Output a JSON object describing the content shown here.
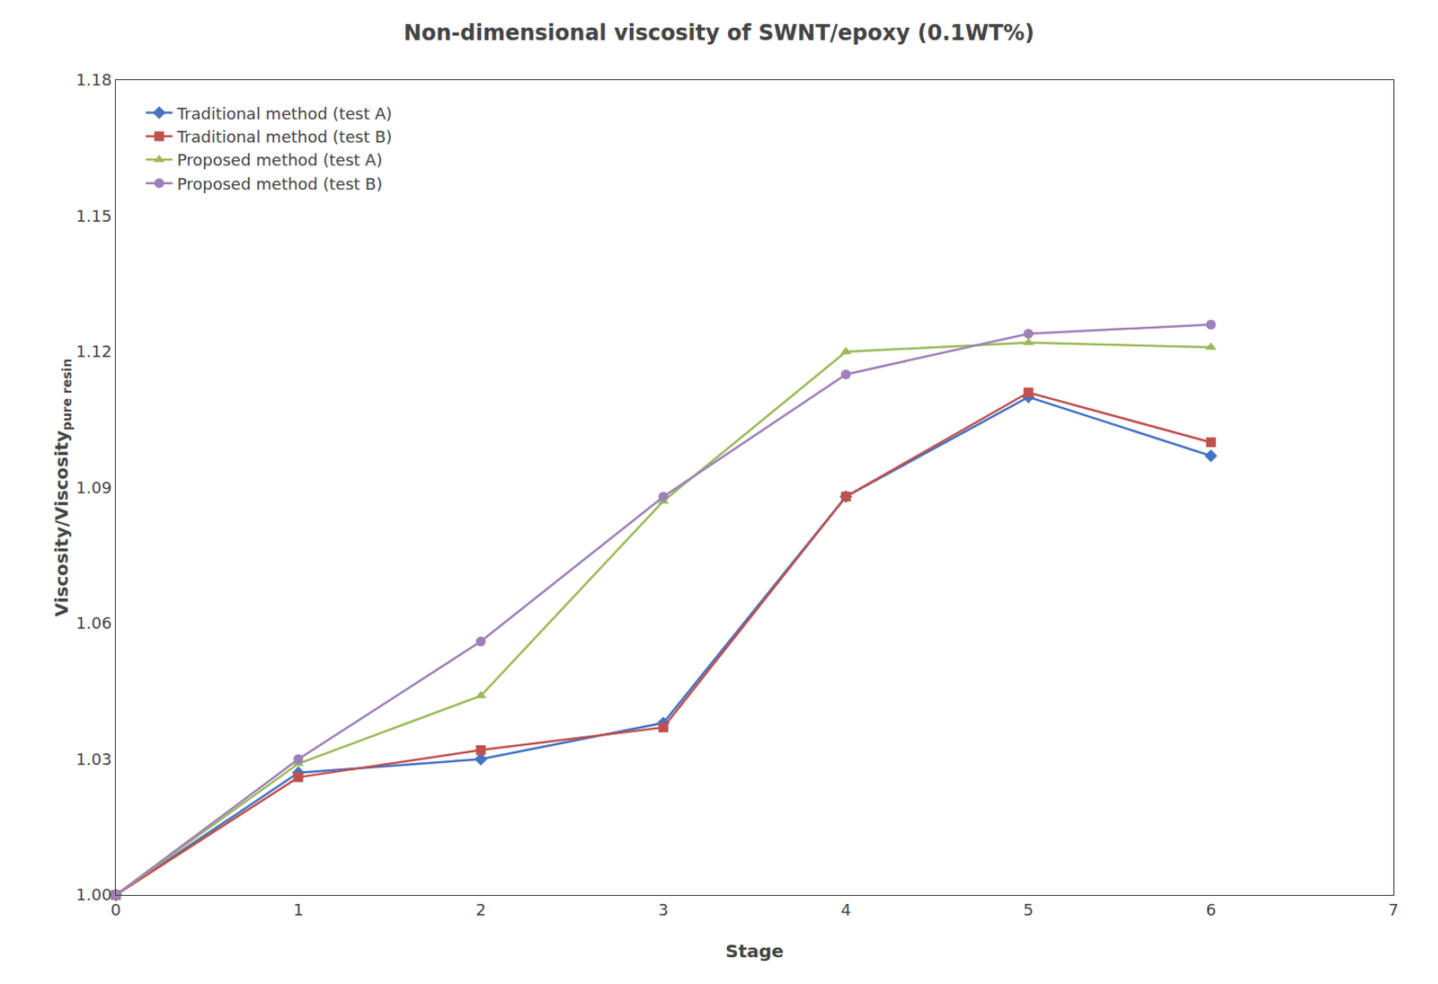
{
  "chart_data": {
    "type": "line",
    "title": "Non-dimensional viscosity of SWNT/epoxy (0.1WT%)",
    "xlabel": "Stage",
    "ylabel": "Viscosity/Viscosity",
    "ylabel_sub": "pure resin",
    "xlim": [
      0,
      7
    ],
    "ylim": [
      1.0,
      1.18
    ],
    "xticks": [
      0,
      1,
      2,
      3,
      4,
      5,
      6,
      7
    ],
    "yticks": [
      {
        "value": 1.0,
        "label": "1.00"
      },
      1.03,
      1.06,
      1.09,
      1.12,
      1.15,
      1.18
    ],
    "grid": false,
    "legend": "upper left",
    "series": [
      {
        "name": "Traditional method (test A)",
        "color": "#4472C4",
        "marker": "diamond",
        "x": [
          0,
          1,
          2,
          3,
          4,
          5,
          6
        ],
        "values": [
          1.0,
          1.027,
          1.03,
          1.038,
          1.088,
          1.11,
          1.097
        ]
      },
      {
        "name": "Traditional method (test B)",
        "color": "#C0504D",
        "marker": "square",
        "x": [
          0,
          1,
          2,
          3,
          4,
          5,
          6
        ],
        "values": [
          1.0,
          1.026,
          1.032,
          1.037,
          1.088,
          1.111,
          1.1
        ]
      },
      {
        "name": "Proposed method (test A)",
        "color": "#9BBB59",
        "marker": "triangle-up",
        "x": [
          0,
          1,
          2,
          3,
          4,
          5,
          6
        ],
        "values": [
          1.0,
          1.029,
          1.044,
          1.087,
          1.12,
          1.122,
          1.121
        ]
      },
      {
        "name": "Proposed method (test B)",
        "color": "#9E80B8",
        "marker": "circle",
        "x": [
          0,
          1,
          2,
          3,
          4,
          5,
          6
        ],
        "values": [
          1.0,
          1.03,
          1.056,
          1.088,
          1.115,
          1.124,
          1.126
        ]
      }
    ]
  }
}
